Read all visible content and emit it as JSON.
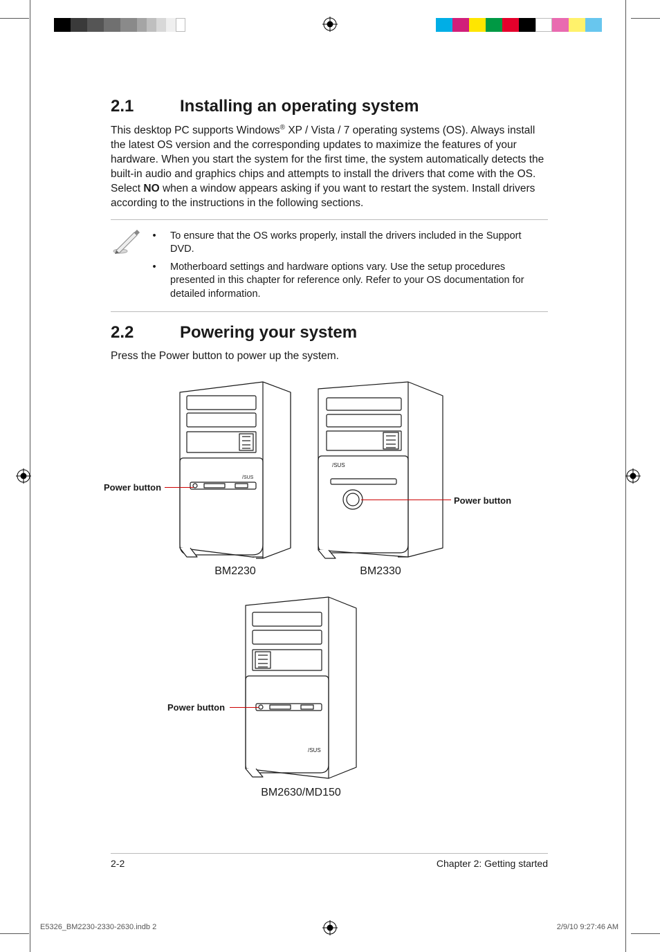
{
  "print": {
    "left_swatches": [
      "#000000",
      "#3a3a3a",
      "#555555",
      "#707070",
      "#8a8a8a",
      "#a5a5a5",
      "#bfbfbf",
      "#d8d8d8",
      "#efefef",
      "#ffffff"
    ],
    "right_swatches": [
      "#00aee6",
      "#d11f7a",
      "#ffe600",
      "#009944",
      "#e4002b",
      "#000000",
      "#ffffff",
      "#e96bb0",
      "#fff26b",
      "#68c6ee"
    ]
  },
  "sec1": {
    "num": "2.1",
    "title": "Installing an operating system",
    "body_pre": "This desktop PC supports Windows",
    "body_post": " XP / Vista / 7 operating systems (OS). Always install the latest OS version and the corresponding updates to maximize the features of your hardware. When you start the system for the first time, the system automatically detects the built-in audio and graphics chips and attempts to install the drivers that come with the OS. Select ",
    "bold": "NO",
    "body_end": " when a window appears asking if you want to restart the system. Install drivers according to the instructions in the following sections.",
    "sup": "®"
  },
  "notes": {
    "n1": "To ensure that the OS works properly, install the drivers included in the Support DVD.",
    "n2": "Motherboard settings and hardware options vary. Use the setup procedures presented in this chapter for reference only. Refer to your OS documentation for detailed information."
  },
  "sec2": {
    "num": "2.2",
    "title": "Powering your system",
    "body": "Press the Power button to power up the system."
  },
  "labels": {
    "power": "Power button",
    "m1": "BM2230",
    "m2": "BM2330",
    "m3": "BM2630/MD150"
  },
  "footer": {
    "page": "2-2",
    "chapter": "Chapter 2: Getting started"
  },
  "slug": {
    "file": "E5326_BM2230-2330-2630.indb   2",
    "stamp": "2/9/10   9:27:46 AM"
  },
  "diagram": {
    "line_color": "#1a1a1a",
    "line_color_red": "#c00000",
    "bg": "#ffffff"
  }
}
